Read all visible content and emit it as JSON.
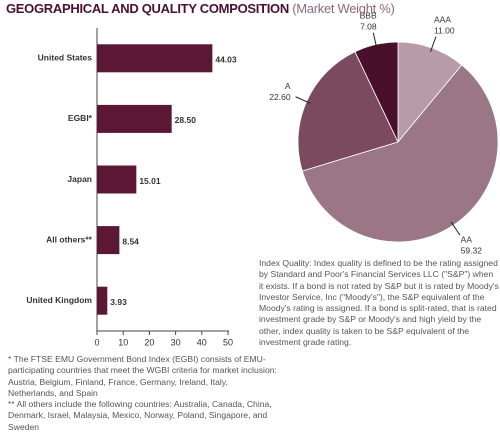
{
  "header": {
    "title": "GEOGRAPHICAL AND QUALITY COMPOSITION",
    "subtitle": "(Market Weight %)"
  },
  "chart_data": [
    {
      "type": "bar",
      "orientation": "horizontal",
      "categories": [
        "United States",
        "EGBI*",
        "Japan",
        "All others**",
        "United Kingdom"
      ],
      "values": [
        44.03,
        28.5,
        15.01,
        8.54,
        3.93
      ],
      "value_labels": [
        "44.03",
        "28.50",
        "15.01",
        "8.54",
        "3.93"
      ],
      "color": "#5a1835",
      "xlim": [
        0,
        50
      ],
      "xticks": [
        0,
        10,
        20,
        30,
        40,
        50
      ]
    },
    {
      "type": "pie",
      "categories": [
        "AAA",
        "AA",
        "A",
        "BBB"
      ],
      "values": [
        11,
        59.32,
        22.6,
        7.08
      ],
      "value_labels": [
        "11.00",
        "59.32",
        "22.60",
        "7.08"
      ],
      "colors": [
        "#b79ba6",
        "#9b7685",
        "#7b4a5f",
        "#4a0f2a"
      ]
    }
  ],
  "index_quality_note": "Index Quality: Index quality is defined to be the rating assigned by Standard and Poor's Financial Services LLC (\"S&P\") when it exists. If a bond is not rated by S&P but it is rated by Moody's Investor Service, Inc (\"Moody's\"), the S&P equivalent of the Moody's rating is assigned. If a bond is split-rated, that is rated investment grade by S&P or Moody's and high yield by the other, index quality is taken to be S&P equivalent of the investment grade rating.",
  "footnotes": [
    "* The FTSE EMU Government Bond Index (EGBI) consists of EMU-participating countries that meet the WGBI criteria for market inclusion: Austria, Belgium, Finland, France, Germany, Ireland, Italy, Netherlands, and Spain",
    "** All others include the following countries: Australia, Canada, China, Denmark, Israel, Malaysia, Mexico, Norway, Poland, Singapore, and Sweden"
  ]
}
